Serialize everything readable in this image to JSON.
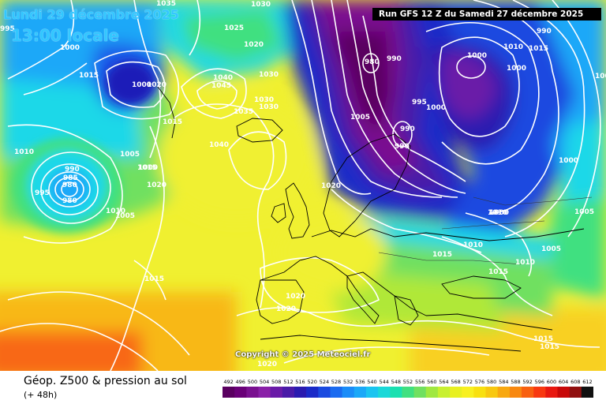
{
  "header": {
    "date": "Lundi 29 décembre 2025",
    "time": "13:00 locale",
    "run": "Run GFS 12 Z du Samedi 27 décembre 2025"
  },
  "footer": {
    "title": "Géop. Z500 & pression au sol",
    "lead": "(+ 48h)",
    "copyright": "Copyright © 2025 Meteociel.fr"
  },
  "scale": {
    "labels": [
      "492",
      "496",
      "500",
      "504",
      "508",
      "512",
      "516",
      "520",
      "524",
      "528",
      "532",
      "536",
      "540",
      "544",
      "548",
      "552",
      "556",
      "560",
      "564",
      "568",
      "572",
      "576",
      "580",
      "584",
      "588",
      "592",
      "596",
      "600",
      "604",
      "608",
      "612"
    ],
    "colors": [
      "#5a0060",
      "#6a0078",
      "#7a1090",
      "#8a20a8",
      "#6a1aa8",
      "#4a1aa8",
      "#2a1ab0",
      "#1a2ac8",
      "#1a4ae0",
      "#1a6af0",
      "#1a8cf8",
      "#1aa8f8",
      "#1ac4f0",
      "#1ad8d8",
      "#1ae0b0",
      "#40e080",
      "#70e060",
      "#a0e840",
      "#c8f030",
      "#e8f020",
      "#f8f020",
      "#f8e010",
      "#f8c810",
      "#f8a810",
      "#f88810",
      "#f86010",
      "#f83810",
      "#e81810",
      "#c80808",
      "#901010",
      "#101010"
    ]
  },
  "map": {
    "isobar_labels": [
      "1035",
      "1030",
      "1025",
      "1020",
      "1030",
      "1015",
      "995",
      "1000",
      "1000",
      "1020",
      "1015",
      "1010",
      "1005",
      "1000",
      "980",
      "1015",
      "1040",
      "1045",
      "1030",
      "1030",
      "1035",
      "1040",
      "995",
      "990",
      "980",
      "1010",
      "1015",
      "1020",
      "1005",
      "990",
      "1000",
      "985",
      "1010",
      "1000",
      "980",
      "990",
      "995",
      "1000",
      "1005",
      "990",
      "1000",
      "990",
      "1020",
      "1000",
      "1005",
      "1005",
      "1010",
      "1015",
      "1015",
      "1010",
      "1010",
      "1005",
      "1020",
      "1020",
      "1020",
      "1015",
      "1015",
      "1015"
    ],
    "colors": {
      "deep_purple": "#6a0a78",
      "purple": "#8a1aa0",
      "dark_blue": "#1a1ab8",
      "blue": "#1a5ae8",
      "light_blue": "#1aa8f8",
      "cyan": "#1ad8e8",
      "green": "#40e080",
      "lime": "#b0e838",
      "yellow": "#f0f030",
      "orange": "#f8b818",
      "red_orange": "#f86818"
    }
  }
}
